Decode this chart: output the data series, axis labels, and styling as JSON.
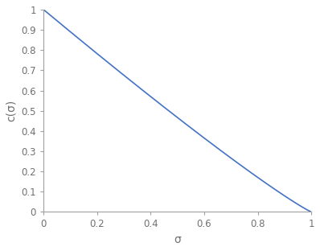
{
  "title": "",
  "xlabel": "σ",
  "ylabel": "c(σ)",
  "xlim": [
    0,
    1
  ],
  "ylim": [
    0,
    1
  ],
  "xticks": [
    0,
    0.2,
    0.4,
    0.6,
    0.8,
    1.0
  ],
  "yticks": [
    0,
    0.1,
    0.2,
    0.3,
    0.4,
    0.5,
    0.6,
    0.7,
    0.8,
    0.9,
    1.0
  ],
  "line_color": "#4472C4",
  "line_width": 1.2,
  "background_color": "#ffffff",
  "tick_color": "#a0a0a0",
  "spine_color": "#a0a0a0",
  "label_color": "#707070",
  "tick_label_color": "#707070",
  "fig_width": 3.98,
  "fig_height": 3.12,
  "dpi": 100,
  "n_points": 2000
}
